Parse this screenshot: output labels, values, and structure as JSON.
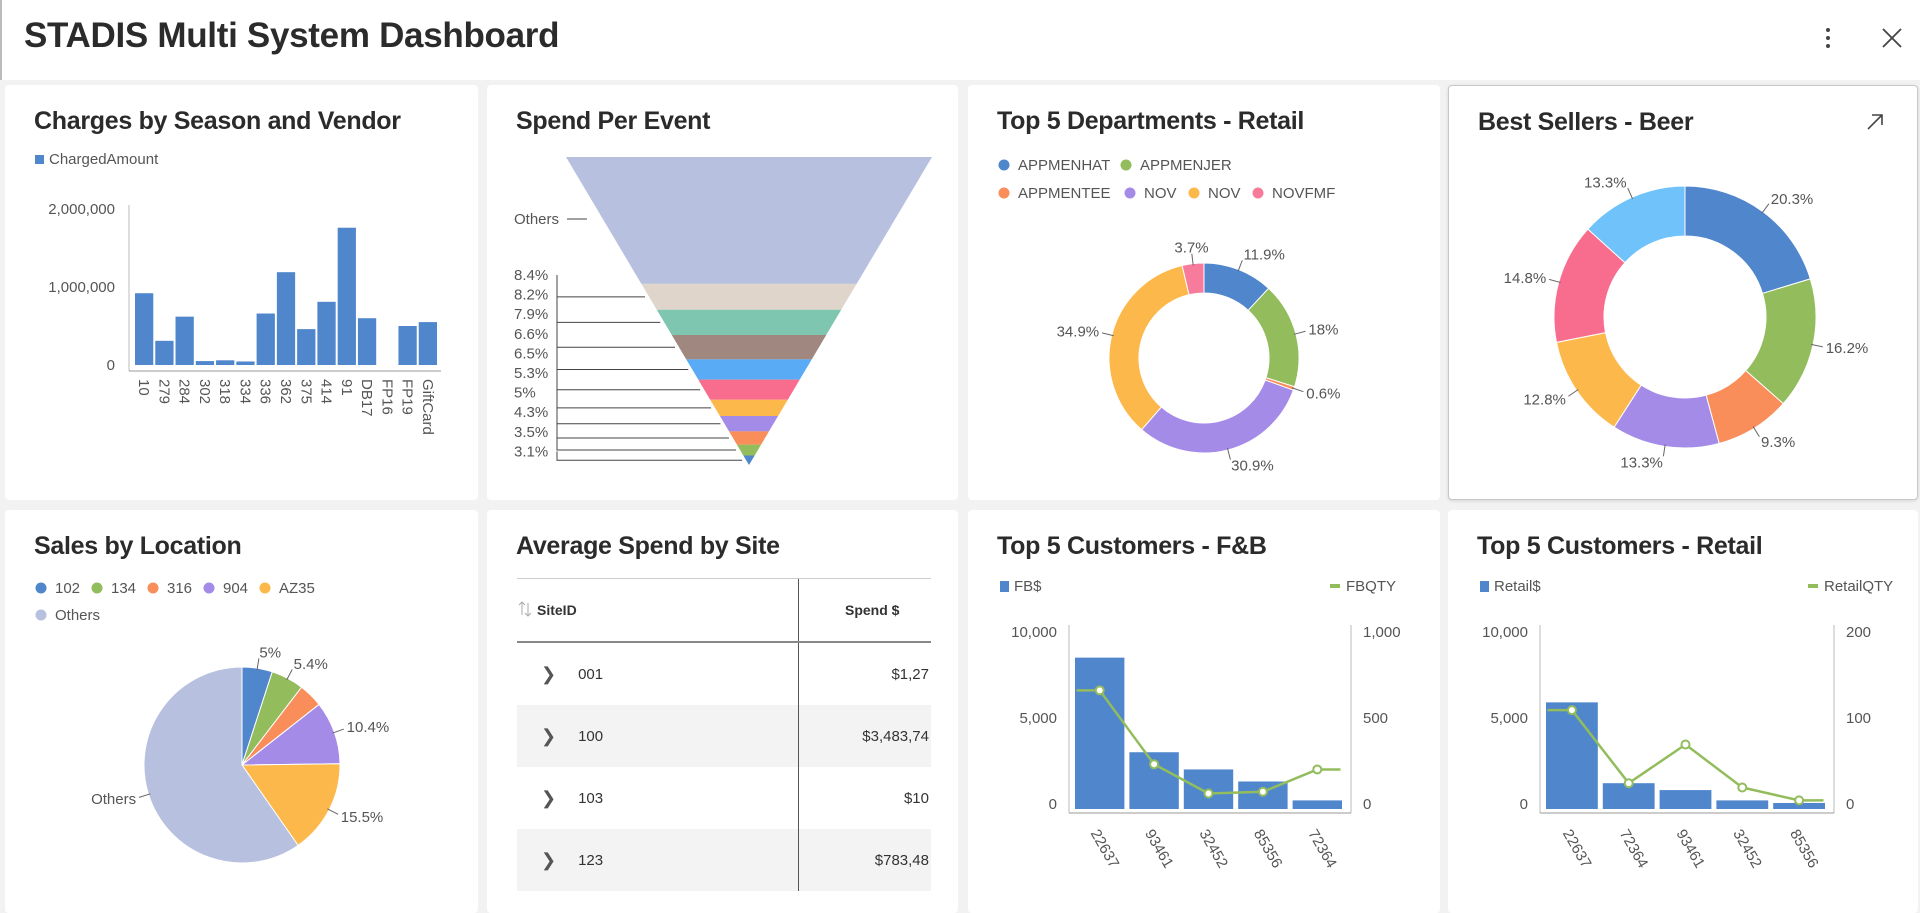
{
  "header": {
    "title": "STADIS Multi System Dashboard",
    "more_icon": "more-vertical-icon",
    "close_icon": "close-icon"
  },
  "chart_data": [
    {
      "id": "charges",
      "type": "bar",
      "title": "Charges by Season and Vendor",
      "legend": [
        "ChargedAmount"
      ],
      "color": "#4f86cc",
      "categories": [
        "10",
        "279",
        "284",
        "302",
        "318",
        "334",
        "336",
        "362",
        "375",
        "414",
        "91",
        "DB17",
        "FP16",
        "FP19",
        "GiftCard"
      ],
      "values": [
        920000,
        310000,
        620000,
        50000,
        60000,
        45000,
        660000,
        1190000,
        460000,
        810000,
        1760000,
        600000,
        0,
        500000,
        550000
      ],
      "yticks": [
        "0",
        "1,000,000",
        "2,000,000"
      ],
      "ylim": [
        0,
        2000000
      ]
    },
    {
      "id": "funnel",
      "type": "funnel",
      "title": "Spend Per Event",
      "segments": [
        {
          "label": "Others",
          "value": 41.2,
          "color": "#b7c0de"
        },
        {
          "label": "8.4%",
          "value": 8.4,
          "color": "#e0d5cb"
        },
        {
          "label": "8.2%",
          "value": 8.2,
          "color": "#7fc6b1"
        },
        {
          "label": "7.9%",
          "value": 7.9,
          "color": "#a0877f"
        },
        {
          "label": "6.6%",
          "value": 6.6,
          "color": "#5aabf5"
        },
        {
          "label": "6.5%",
          "value": 6.5,
          "color": "#f86d8e"
        },
        {
          "label": "5.3%",
          "value": 5.3,
          "color": "#fdb84b"
        },
        {
          "label": "5%",
          "value": 5,
          "color": "#a58be8"
        },
        {
          "label": "4.3%",
          "value": 4.3,
          "color": "#f98e5a"
        },
        {
          "label": "3.5%",
          "value": 3.5,
          "color": "#93bd5d"
        },
        {
          "label": "3.1%",
          "value": 3.1,
          "color": "#4f86cc"
        }
      ]
    },
    {
      "id": "dept",
      "type": "pie",
      "donut": true,
      "title": "Top 5 Departments - Retail",
      "legend_position": "top",
      "slices": [
        {
          "name": "APPMENHAT",
          "value": 11.9,
          "label": "11.9%",
          "color": "#4f86cc"
        },
        {
          "name": "APPMENJER",
          "value": 18,
          "label": "18%",
          "color": "#93bd5d"
        },
        {
          "name": "APPMENTEE",
          "value": 0.6,
          "label": "0.6%",
          "color": "#f98e5a"
        },
        {
          "name": "NOV",
          "value": 30.9,
          "label": "30.9%",
          "color": "#a58be8"
        },
        {
          "name": "NOV",
          "value": 34.9,
          "label": "34.9%",
          "color": "#fdb84b"
        },
        {
          "name": "NOVFMF",
          "value": 3.7,
          "label": "3.7%",
          "color": "#f77c9c"
        }
      ]
    },
    {
      "id": "beer",
      "type": "pie",
      "donut": true,
      "title": "Best Sellers - Beer",
      "expand_icon": "expand-arrow-icon",
      "slices": [
        {
          "value": 20.3,
          "label": "20.3%",
          "color": "#4f86cc"
        },
        {
          "value": 16.2,
          "label": "16.2%",
          "color": "#93bd5d"
        },
        {
          "value": 9.3,
          "label": "9.3%",
          "color": "#f98e5a"
        },
        {
          "value": 13.3,
          "label": "13.3%",
          "color": "#a58be8"
        },
        {
          "value": 12.8,
          "label": "12.8%",
          "color": "#fdb84b"
        },
        {
          "value": 14.8,
          "label": "14.8%",
          "color": "#f86d8e"
        },
        {
          "value": 13.3,
          "label": "13.3%",
          "color": "#70c2fb"
        }
      ]
    },
    {
      "id": "location",
      "type": "pie",
      "donut": false,
      "title": "Sales by Location",
      "legend_position": "top",
      "slices": [
        {
          "name": "102",
          "value": 5,
          "label": "5%",
          "color": "#4f86cc"
        },
        {
          "name": "134",
          "value": 5.4,
          "label": "5.4%",
          "color": "#93bd5d"
        },
        {
          "name": "316",
          "value": 4,
          "label": "",
          "color": "#f98e5a"
        },
        {
          "name": "904",
          "value": 10.4,
          "label": "10.4%",
          "color": "#a58be8"
        },
        {
          "name": "AZ35",
          "value": 15.5,
          "label": "15.5%",
          "color": "#fdb84b"
        },
        {
          "name": "Others",
          "value": 59.7,
          "label": "Others",
          "color": "#b7c0de"
        }
      ]
    },
    {
      "id": "fb",
      "type": "bar+line",
      "title": "Top 5 Customers - F&B",
      "categories": [
        "22637",
        "93461",
        "32452",
        "85356",
        "72364"
      ],
      "series": [
        {
          "name": "FB$",
          "type": "bar",
          "axis": "left",
          "color": "#4f86cc",
          "values": [
            8800,
            3300,
            2300,
            1600,
            500
          ]
        },
        {
          "name": "FBQTY",
          "type": "line",
          "axis": "right",
          "color": "#93bd5d",
          "values": [
            690,
            260,
            90,
            100,
            230
          ]
        }
      ],
      "ylim_left": [
        0,
        10000
      ],
      "yticks_left": [
        "0",
        "5,000",
        "10,000"
      ],
      "ylim_right": [
        0,
        1000
      ],
      "yticks_right": [
        "0",
        "500",
        "1,000"
      ]
    },
    {
      "id": "retail",
      "type": "bar+line",
      "title": "Top 5 Customers - Retail",
      "categories": [
        "22637",
        "72364",
        "93461",
        "32452",
        "85356"
      ],
      "series": [
        {
          "name": "Retail$",
          "type": "bar",
          "axis": "left",
          "color": "#4f86cc",
          "values": [
            6200,
            1500,
            1100,
            500,
            350
          ]
        },
        {
          "name": "RetailQTY",
          "type": "line",
          "axis": "right",
          "color": "#93bd5d",
          "values": [
            115,
            30,
            75,
            25,
            10
          ]
        }
      ],
      "ylim_left": [
        0,
        10000
      ],
      "yticks_left": [
        "0",
        "5,000",
        "10,000"
      ],
      "ylim_right": [
        0,
        200
      ],
      "yticks_right": [
        "0",
        "100",
        "200"
      ]
    }
  ],
  "table": {
    "title": "Average Spend by Site",
    "columns": [
      "SiteID",
      "Spend $"
    ],
    "sort_icon": "sort-arrows-icon",
    "rows": [
      {
        "site": "001",
        "spend": "$1,27"
      },
      {
        "site": "100",
        "spend": "$3,483,74"
      },
      {
        "site": "103",
        "spend": "$10"
      },
      {
        "site": "123",
        "spend": "$783,48"
      }
    ]
  }
}
